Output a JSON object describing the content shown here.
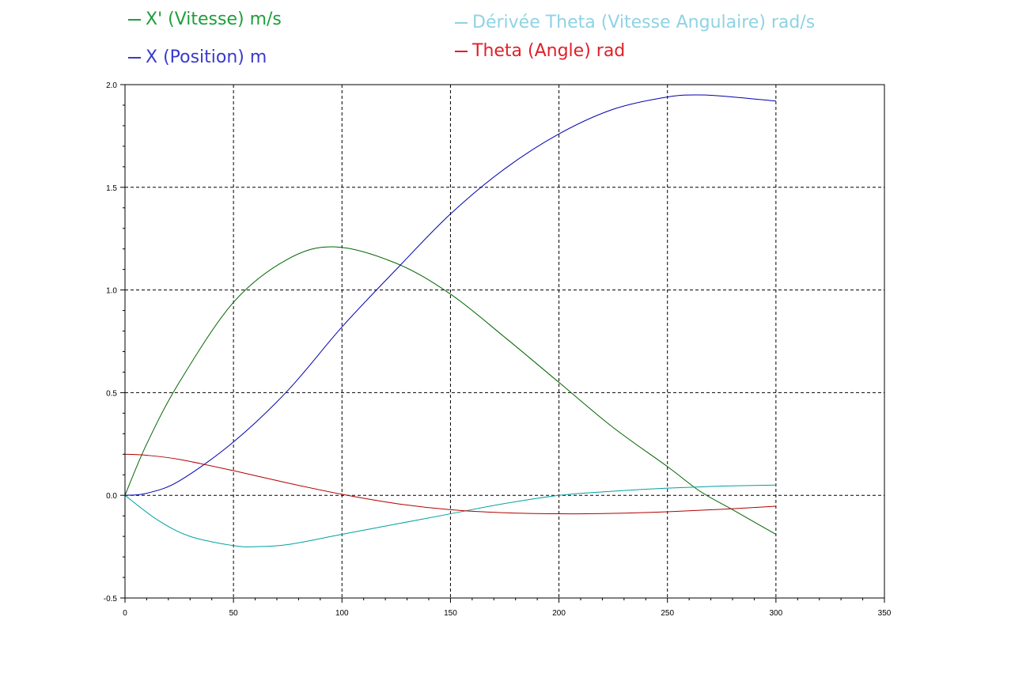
{
  "legend": [
    {
      "name": "X' (Vitesse)  m/s",
      "color": "#1e9e3c"
    },
    {
      "name": "X (Position) m",
      "color": "#3a3acc"
    },
    {
      "name": "Dérivée Theta (Vitesse Angulaire) rad/s",
      "color": "#8fd3e3"
    },
    {
      "name": "Theta (Angle) rad",
      "color": "#e0202a"
    }
  ],
  "chart_data": {
    "type": "line",
    "title": "",
    "xlabel": "",
    "ylabel": "",
    "xlim": [
      0,
      350
    ],
    "ylim": [
      -0.5,
      2.0
    ],
    "x_ticks": [
      0,
      50,
      100,
      150,
      200,
      250,
      300,
      350
    ],
    "y_ticks": [
      -0.5,
      0.0,
      0.5,
      1.0,
      1.5,
      2.0
    ],
    "x_tick_labels": [
      "0",
      "50",
      "100",
      "150",
      "200",
      "250",
      "300",
      "350"
    ],
    "y_tick_labels": [
      "-0.5",
      "0.0",
      "0.5",
      "1.0",
      "1.5",
      "2.0"
    ],
    "grid": true,
    "legend_position": "top",
    "series": [
      {
        "name": "X' (Vitesse)  m/s",
        "color": "#006400",
        "x": [
          0,
          10,
          25,
          50,
          75,
          97,
          125,
          150,
          175,
          200,
          225,
          250,
          265,
          280,
          300
        ],
        "y": [
          0,
          0.25,
          0.55,
          0.94,
          1.15,
          1.21,
          1.13,
          0.98,
          0.77,
          0.55,
          0.33,
          0.14,
          0.02,
          -0.07,
          -0.19
        ]
      },
      {
        "name": "X (Position) m",
        "color": "#0000b0",
        "x": [
          0,
          10,
          25,
          50,
          75,
          100,
          125,
          150,
          175,
          200,
          225,
          250,
          265,
          280,
          300
        ],
        "y": [
          0,
          0.01,
          0.07,
          0.26,
          0.51,
          0.82,
          1.1,
          1.37,
          1.59,
          1.76,
          1.88,
          1.94,
          1.95,
          1.94,
          1.92
        ]
      },
      {
        "name": "Dérivée Theta (Vitesse Angulaire) rad/s",
        "color": "#00a0a0",
        "x": [
          0,
          15,
          30,
          50,
          60,
          75,
          100,
          125,
          150,
          175,
          200,
          225,
          250,
          275,
          300
        ],
        "y": [
          0,
          -0.12,
          -0.2,
          -0.245,
          -0.25,
          -0.24,
          -0.19,
          -0.14,
          -0.09,
          -0.04,
          0.0,
          0.02,
          0.035,
          0.045,
          0.05
        ]
      },
      {
        "name": "Theta (Angle) rad",
        "color": "#b00000",
        "x": [
          0,
          10,
          25,
          50,
          75,
          100,
          125,
          150,
          175,
          200,
          225,
          250,
          275,
          300
        ],
        "y": [
          0.2,
          0.195,
          0.175,
          0.12,
          0.06,
          0.005,
          -0.04,
          -0.07,
          -0.085,
          -0.09,
          -0.088,
          -0.08,
          -0.068,
          -0.053
        ]
      }
    ]
  }
}
